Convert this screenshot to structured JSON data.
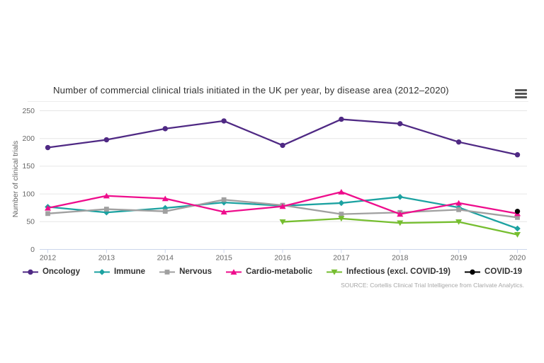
{
  "chart": {
    "title": "Number of commercial clinical trials initiated in the UK per year, by disease area (2012–2020)",
    "y_axis_title": "Number of clinical trials",
    "source": "SOURCE: Cortellis Clinical Trial Intelligence from Clarivate Analytics.",
    "menu_icon": "hamburger-icon"
  },
  "colors": {
    "grid": "#e6e6e6",
    "axis": "#ccd6eb",
    "title_text": "#333333",
    "axis_text": "#666666",
    "legend_text": "#333333",
    "source_text": "#a6a6a6"
  },
  "chart_data": {
    "type": "line",
    "title": "Number of commercial clinical trials initiated in the UK per year, by disease area (2012–2020)",
    "xlabel": "",
    "ylabel": "Number of clinical trials",
    "x": [
      "2012",
      "2013",
      "2014",
      "2015",
      "2016",
      "2017",
      "2018",
      "2019",
      "2020"
    ],
    "ylim": [
      0,
      250
    ],
    "y_ticks": [
      0,
      50,
      100,
      150,
      200,
      250
    ],
    "grid": "horizontal-only",
    "legend_position": "bottom-center",
    "series": [
      {
        "name": "Oncology",
        "color": "#4f2984",
        "marker": "circle",
        "values": [
          183,
          197,
          217,
          231,
          187,
          234,
          226,
          193,
          170
        ]
      },
      {
        "name": "Immune",
        "color": "#1ca2a1",
        "marker": "diamond",
        "values": [
          76,
          66,
          74,
          84,
          78,
          83,
          94,
          75,
          37
        ]
      },
      {
        "name": "Nervous",
        "color": "#a0a0a0",
        "marker": "square",
        "values": [
          64,
          72,
          68,
          89,
          79,
          63,
          66,
          71,
          57
        ]
      },
      {
        "name": "Cardio-metabolic",
        "color": "#ee0d8c",
        "marker": "triangle-up",
        "values": [
          74,
          96,
          91,
          67,
          77,
          103,
          63,
          83,
          64
        ]
      },
      {
        "name": "Infectious (excl. COVID-19)",
        "color": "#76be30",
        "marker": "triangle-down",
        "values": [
          null,
          null,
          null,
          null,
          49,
          55,
          47,
          49,
          26
        ]
      },
      {
        "name": "COVID-19",
        "color": "#000000",
        "marker": "circle",
        "values": [
          null,
          null,
          null,
          null,
          null,
          null,
          null,
          null,
          68
        ]
      }
    ]
  }
}
